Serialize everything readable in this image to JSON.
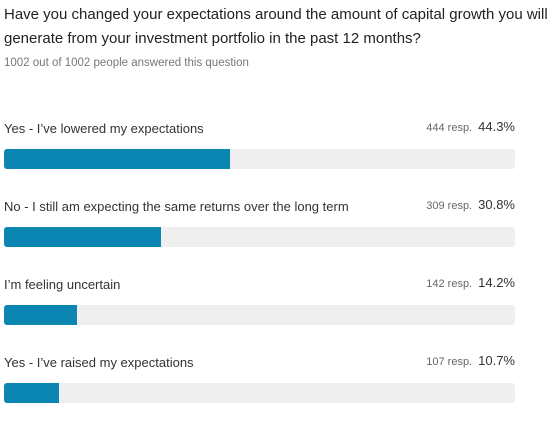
{
  "chart_data": {
    "type": "bar",
    "orientation": "horizontal",
    "title": "Have you changed your expectations around the amount of capital growth you will generate from your investment portfolio in the past 12 months?",
    "subtitle": "1002 out of 1002 people answered this question",
    "categories": [
      "Yes - I’ve lowered my expectations",
      "No - I still am expecting the same returns over the long term",
      "I’m feeling uncertain",
      "Yes - I’ve raised my expectations"
    ],
    "values": [
      44.3,
      30.8,
      14.2,
      10.7
    ],
    "value_labels": [
      "44.3%",
      "30.8%",
      "14.2%",
      "10.7%"
    ],
    "counts": [
      444,
      309,
      142,
      107
    ],
    "count_labels": [
      "444 resp.",
      "309 resp.",
      "142 resp.",
      "107 resp."
    ],
    "xlim": [
      0,
      100
    ],
    "color": "#0b86b3",
    "track_color": "#efefef"
  }
}
